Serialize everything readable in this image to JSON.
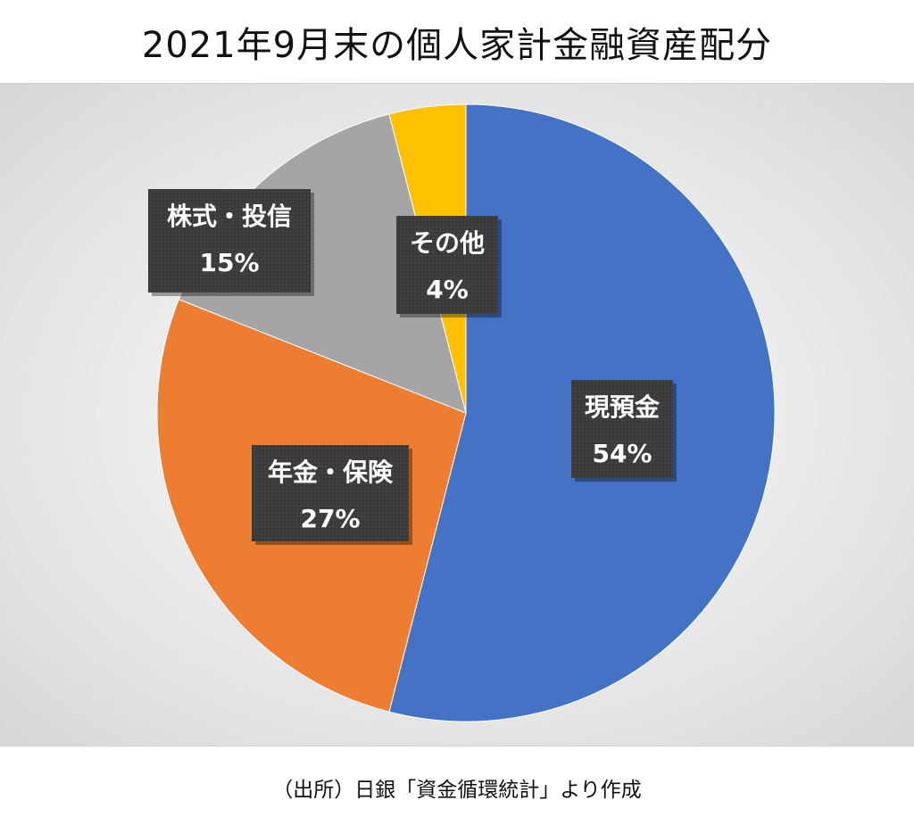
{
  "chart_data": {
    "type": "pie",
    "title": "2021年9月末の個人家計金融資産配分",
    "slices": [
      {
        "label": "現預金",
        "value": 54,
        "value_label": "54%",
        "color": "#4472C4"
      },
      {
        "label": "年金・保険",
        "value": 27,
        "value_label": "27%",
        "color": "#ED7D31"
      },
      {
        "label": "株式・投信",
        "value": 15,
        "value_label": "15%",
        "color": "#A5A5A5"
      },
      {
        "label": "その他",
        "value": 4,
        "value_label": "4%",
        "color": "#FFC000"
      }
    ],
    "start_angle": "12 o'clock",
    "direction": "clockwise",
    "legend": "none",
    "label_style": "dark boxes with white text"
  },
  "footer": {
    "source": "（出所）日銀「資金循環統計」より作成"
  }
}
